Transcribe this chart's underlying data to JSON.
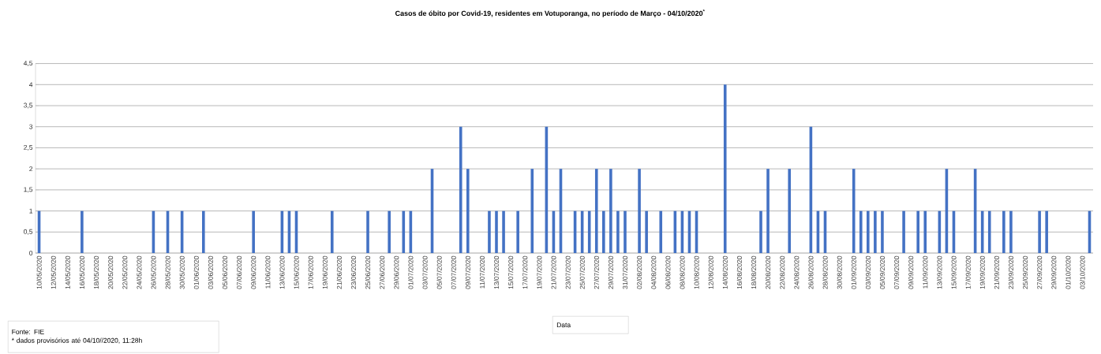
{
  "chart_data": {
    "type": "bar",
    "title": "Casos de óbito por Covid-19, residentes em Votuporanga, no período de Março - 04/10/2020$^{*}$",
    "annotations": [
      "Fonte: FIE",
      "* dados provisórios até  04/10//2020, 11:28h",
      "Data"
    ],
    "categories": [
      "10/05/2020",
      null,
      "12/05/2020",
      null,
      "14/05/2020",
      null,
      "16/05/2020",
      null,
      "18/05/2020",
      null,
      "20/05/2020",
      null,
      "22/05/2020",
      null,
      "24/05/2020",
      null,
      "26/05/2020",
      null,
      "28/05/2020",
      null,
      "30/05/2020",
      null,
      "01/06/2020",
      null,
      "03/06/2020",
      null,
      "05/06/2020",
      null,
      "07/06/2020",
      null,
      "09/06/2020",
      null,
      "11/06/2020",
      null,
      "13/06/2020",
      null,
      "15/06/2020",
      null,
      "17/06/2020",
      null,
      "19/06/2020",
      null,
      "21/06/2020",
      null,
      "23/06/2020",
      null,
      "25/06/2020",
      null,
      "27/06/2020",
      null,
      "29/06/2020",
      null,
      "01/07/2020",
      null,
      "03/07/2020",
      null,
      "05/07/2020",
      null,
      "07/07/2020",
      null,
      "09/07/2020",
      null,
      "11/07/2020",
      null,
      "13/07/2020",
      null,
      "15/07/2020",
      null,
      "17/07/2020",
      null,
      "19/07/2020",
      null,
      "21/07/2020",
      null,
      "23/07/2020",
      null,
      "25/07/2020",
      null,
      "27/07/2020",
      null,
      "29/07/2020",
      null,
      "31/07/2020",
      null,
      "02/08/2020",
      null,
      "04/08/2020",
      null,
      "06/08/2020",
      null,
      "08/08/2020",
      null,
      "10/08/2020",
      null,
      "12/08/2020",
      null,
      "14/08/2020",
      null,
      "16/08/2020",
      null,
      "18/08/2020",
      null,
      "20/08/2020",
      null,
      "22/08/2020",
      null,
      "24/08/2020",
      null,
      "26/08/2020",
      null,
      "28/08/2020",
      null,
      "30/08/2020",
      null,
      "01/09/2020",
      null,
      "03/09/2020",
      null,
      "05/09/2020",
      null,
      "07/09/2020",
      null,
      "09/09/2020",
      null,
      "11/09/2020",
      null,
      "13/09/2020",
      null,
      "15/09/2020",
      null,
      "17/09/2020",
      null,
      "19/09/2020",
      null,
      "21/09/2020",
      null,
      "23/09/2020",
      null,
      "25/09/2020",
      null,
      "27/09/2020",
      null,
      "29/09/2020",
      null,
      "01/10/2020",
      null,
      "03/10/2020",
      null
    ],
    "values": [
      1,
      0,
      0,
      0,
      0,
      0,
      1,
      0,
      0,
      0,
      0,
      0,
      0,
      0,
      0,
      0,
      1,
      0,
      1,
      0,
      1,
      0,
      0,
      1,
      0,
      0,
      0,
      0,
      0,
      0,
      1,
      0,
      0,
      0,
      1,
      1,
      1,
      0,
      0,
      0,
      0,
      1,
      0,
      0,
      0,
      0,
      1,
      0,
      0,
      1,
      0,
      1,
      1,
      0,
      0,
      2,
      0,
      0,
      0,
      3,
      2,
      0,
      0,
      1,
      1,
      1,
      0,
      1,
      0,
      2,
      0,
      3,
      1,
      2,
      0,
      1,
      1,
      1,
      2,
      1,
      2,
      1,
      1,
      0,
      2,
      1,
      0,
      1,
      0,
      1,
      1,
      1,
      1,
      0,
      0,
      0,
      4,
      0,
      0,
      0,
      0,
      1,
      2,
      0,
      0,
      2,
      0,
      0,
      3,
      1,
      1,
      0,
      0,
      0,
      2,
      1,
      1,
      1,
      1,
      0,
      0,
      1,
      0,
      1,
      1,
      0,
      1,
      2,
      1,
      0,
      0,
      2,
      1,
      1,
      0,
      1,
      1,
      0,
      0,
      0,
      1,
      1,
      0,
      0,
      0,
      0,
      0,
      1
    ],
    "color": "#4472c4",
    "ylim": [
      0,
      4.5
    ],
    "yticks": [
      0,
      {
        "value": 0.5,
        "label": "0,5"
      },
      1,
      {
        "value": 1.5,
        "label": "1,5"
      },
      2,
      {
        "value": 2.5,
        "label": "2,5"
      },
      3,
      {
        "value": 3.5,
        "label": "3,5"
      },
      4,
      {
        "value": 4.5,
        "label": "4,5"
      }
    ],
    "grid": "y"
  }
}
